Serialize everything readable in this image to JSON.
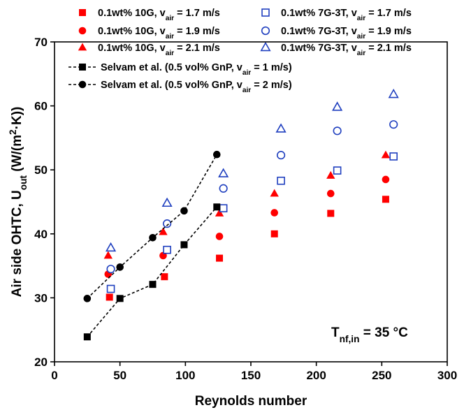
{
  "chart_data": {
    "type": "scatter",
    "xlabel": "Reynolds number",
    "ylabel_parts": [
      "Air side OHTC, U",
      "out",
      " (W/(m",
      "2",
      "·K))"
    ],
    "xlim": [
      0,
      300
    ],
    "ylim": [
      20,
      70
    ],
    "x_ticks": [
      0,
      50,
      100,
      150,
      200,
      250,
      300
    ],
    "y_ticks": [
      20,
      30,
      40,
      50,
      60,
      70
    ],
    "grid": false,
    "legend_position": "top",
    "annotation_parts": [
      "T",
      "nf,in",
      " = 35 °C"
    ],
    "series": [
      {
        "name_parts": [
          "0.1wt%  10G, v",
          "air",
          " = 1.7 m/s"
        ],
        "marker": "square",
        "filled": true,
        "color": "#ff0000",
        "line": false,
        "points": [
          [
            42,
            30.1
          ],
          [
            84,
            33.3
          ],
          [
            126,
            36.2
          ],
          [
            168,
            40.0
          ],
          [
            211,
            43.2
          ],
          [
            253,
            45.4
          ]
        ]
      },
      {
        "name_parts": [
          "0.1wt%  10G, v",
          "air",
          " = 1.9 m/s"
        ],
        "marker": "circle",
        "filled": true,
        "color": "#ff0000",
        "line": false,
        "points": [
          [
            41,
            33.7
          ],
          [
            83,
            36.6
          ],
          [
            126,
            39.6
          ],
          [
            168,
            43.3
          ],
          [
            211,
            46.3
          ],
          [
            253,
            48.5
          ]
        ]
      },
      {
        "name_parts": [
          "0.1wt%  10G, v",
          "air",
          " = 2.1 m/s"
        ],
        "marker": "triangle",
        "filled": true,
        "color": "#ff0000",
        "line": false,
        "points": [
          [
            41,
            36.6
          ],
          [
            83,
            40.3
          ],
          [
            126,
            43.2
          ],
          [
            168,
            46.3
          ],
          [
            211,
            49.1
          ],
          [
            253,
            52.3
          ]
        ]
      },
      {
        "name_parts": [
          "0.1wt%  7G-3T, v",
          "air",
          " = 1.7 m/s"
        ],
        "marker": "square",
        "filled": false,
        "color": "#1f3fbf",
        "line": false,
        "points": [
          [
            43,
            31.4
          ],
          [
            86,
            37.5
          ],
          [
            129,
            44.0
          ],
          [
            173,
            48.3
          ],
          [
            216,
            49.9
          ],
          [
            259,
            52.1
          ]
        ]
      },
      {
        "name_parts": [
          "0.1wt%  7G-3T, v",
          "air",
          " = 1.9 m/s"
        ],
        "marker": "circle",
        "filled": false,
        "color": "#1f3fbf",
        "line": false,
        "points": [
          [
            43,
            34.5
          ],
          [
            86,
            41.6
          ],
          [
            129,
            47.1
          ],
          [
            173,
            52.3
          ],
          [
            216,
            56.1
          ],
          [
            259,
            57.1
          ]
        ]
      },
      {
        "name_parts": [
          "0.1wt%  7G-3T, v",
          "air",
          " = 2.1 m/s"
        ],
        "marker": "triangle",
        "filled": false,
        "color": "#1f3fbf",
        "line": false,
        "points": [
          [
            43,
            37.8
          ],
          [
            86,
            44.8
          ],
          [
            129,
            49.4
          ],
          [
            173,
            56.4
          ],
          [
            216,
            59.8
          ],
          [
            259,
            61.8
          ]
        ]
      },
      {
        "name_parts": [
          "Selvam et al. (0.5 vol% GnP, v",
          "air",
          " = 1 m/s)"
        ],
        "marker": "square",
        "filled": true,
        "color": "#000000",
        "line": true,
        "points": [
          [
            25,
            23.9
          ],
          [
            50,
            29.9
          ],
          [
            75,
            32.1
          ],
          [
            99,
            38.3
          ],
          [
            124,
            44.2
          ]
        ]
      },
      {
        "name_parts": [
          "Selvam et al. (0.5 vol% GnP, v",
          "air",
          " = 2 m/s)"
        ],
        "marker": "circle",
        "filled": true,
        "color": "#000000",
        "line": true,
        "points": [
          [
            25,
            29.9
          ],
          [
            50,
            34.8
          ],
          [
            75,
            39.4
          ],
          [
            99,
            43.6
          ],
          [
            124,
            52.4
          ]
        ]
      }
    ]
  }
}
